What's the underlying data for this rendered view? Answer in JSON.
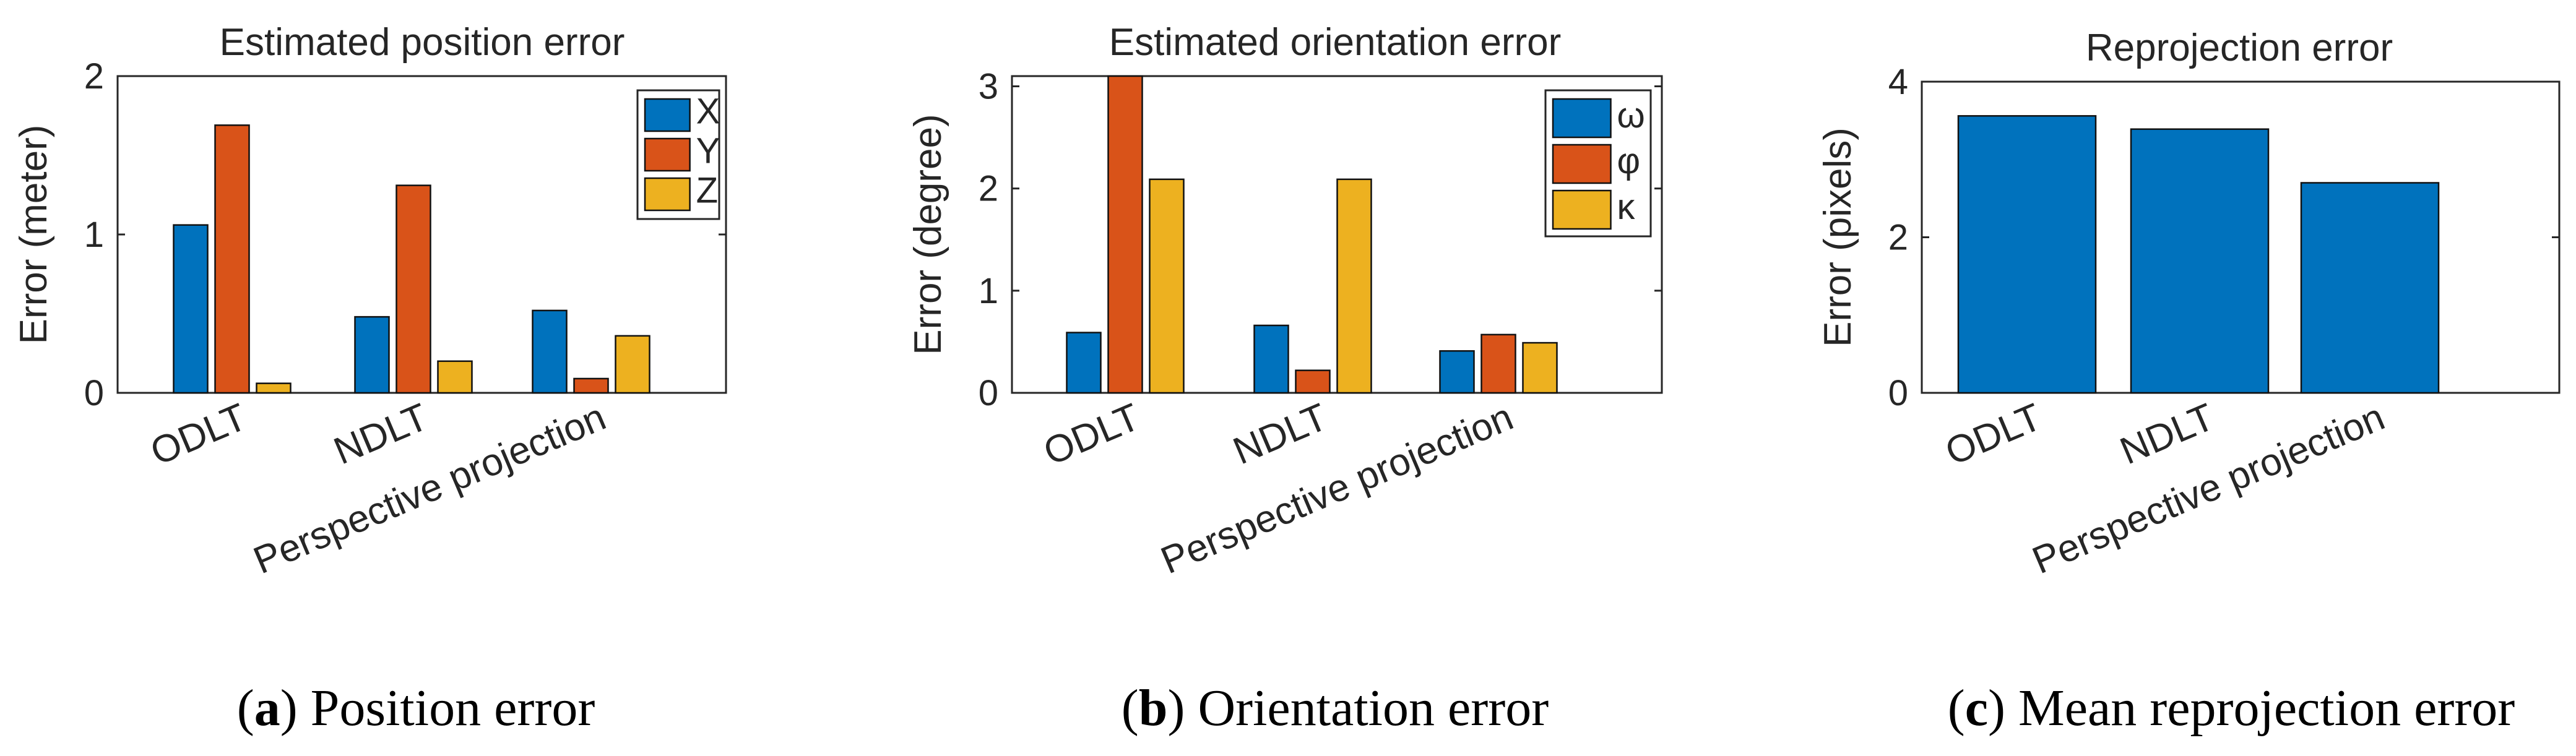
{
  "chart_data": [
    {
      "type": "bar",
      "title": "Estimated position error",
      "xlabel": "",
      "ylabel": "Error (meter)",
      "ylim": [
        0,
        2
      ],
      "yticks": [
        "0",
        "1",
        "2"
      ],
      "categories": [
        "ODLT",
        "NDLT",
        "Perspective projection"
      ],
      "series": [
        {
          "name": "X",
          "color": "#0072BD",
          "values": [
            1.06,
            0.48,
            0.52
          ]
        },
        {
          "name": "Y",
          "color": "#D95319",
          "values": [
            1.69,
            1.31,
            0.09
          ]
        },
        {
          "name": "Z",
          "color": "#EDB120",
          "values": [
            0.06,
            0.2,
            0.36
          ]
        }
      ],
      "legend": "top-right",
      "caption_letter": "a",
      "caption_text": "Position error"
    },
    {
      "type": "bar",
      "title": "Estimated orientation error",
      "xlabel": "",
      "ylabel": "Error (degree)",
      "ylim": [
        0,
        3.1
      ],
      "yticks": [
        "0",
        "1",
        "2",
        "3"
      ],
      "categories": [
        "ODLT",
        "NDLT",
        "Perspective projection"
      ],
      "series": [
        {
          "name": "ω",
          "color": "#0072BD",
          "values": [
            0.59,
            0.66,
            0.41
          ]
        },
        {
          "name": "φ",
          "color": "#D95319",
          "values": [
            3.1,
            0.22,
            0.57
          ]
        },
        {
          "name": "κ",
          "color": "#EDB120",
          "values": [
            2.09,
            2.09,
            0.49
          ]
        }
      ],
      "legend": "top-right",
      "caption_letter": "b",
      "caption_text": "Orientation error"
    },
    {
      "type": "bar",
      "title": "Reprojection error",
      "xlabel": "",
      "ylabel": "Error (pixels)",
      "ylim": [
        0,
        4
      ],
      "yticks": [
        "0",
        "2",
        "4"
      ],
      "categories": [
        "ODLT",
        "NDLT",
        "Perspective projection"
      ],
      "series": [
        {
          "name": "",
          "color": "#0072BD",
          "values": [
            3.56,
            3.39,
            2.7
          ]
        }
      ],
      "legend": "none",
      "caption_letter": "c",
      "caption_text": "Mean reprojection error"
    }
  ]
}
